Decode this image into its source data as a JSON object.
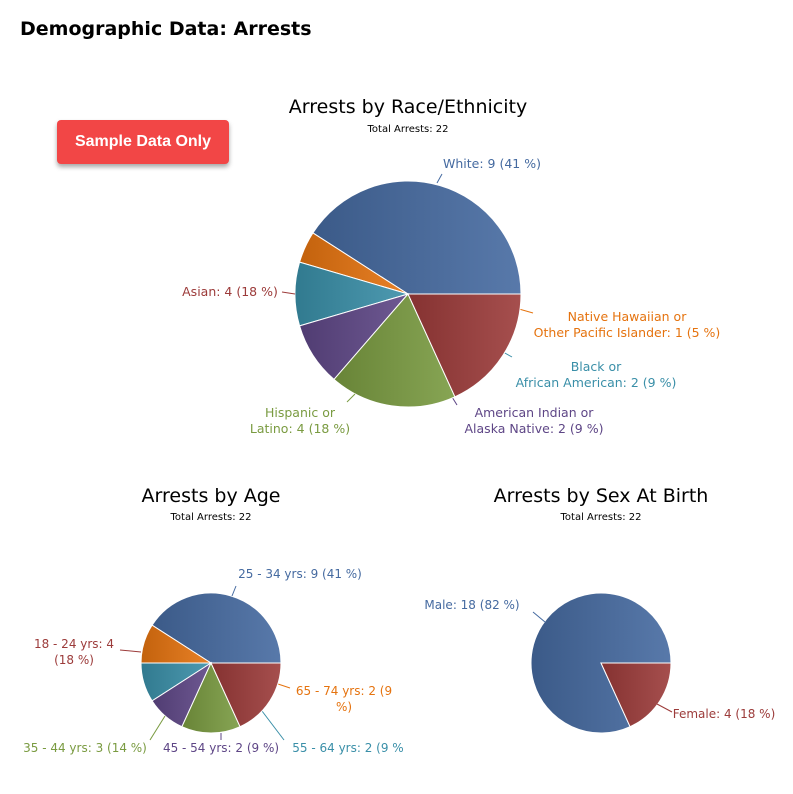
{
  "page": {
    "title": "Demographic Data: Arrests",
    "sample_button": "Sample Data Only"
  },
  "colors": {
    "blue": "#456aa0",
    "red": "#9c3b3a",
    "green": "#7a9b41",
    "purple": "#5e4686",
    "teal": "#3a8fa8",
    "orange": "#e5730f",
    "button": "#f24646"
  },
  "chart_data": [
    {
      "type": "pie",
      "title": "Arrests by Race/Ethnicity",
      "subtitle": "Total Arrests: 22",
      "slices": [
        {
          "label": [
            "White: 9 (41 %)"
          ],
          "value": 9,
          "color": "#456aa0"
        },
        {
          "label": [
            "Native Hawaiian or",
            "Other Pacific Islander: 1 (5 %)"
          ],
          "value": 1,
          "color": "#e5730f"
        },
        {
          "label": [
            "Black or",
            "African American: 2 (9 %)"
          ],
          "value": 2,
          "color": "#3a8fa8"
        },
        {
          "label": [
            "American Indian or",
            "Alaska Native: 2 (9 %)"
          ],
          "value": 2,
          "color": "#5e4686"
        },
        {
          "label": [
            "Hispanic or",
            "Latino: 4 (18 %)"
          ],
          "value": 4,
          "color": "#7a9b41"
        },
        {
          "label": [
            "Asian: 4 (18 %)"
          ],
          "value": 4,
          "color": "#9c3b3a"
        }
      ]
    },
    {
      "type": "pie",
      "title": "Arrests by Age",
      "subtitle": "Total Arrests: 22",
      "slices": [
        {
          "label": [
            "25 - 34 yrs: 9 (41 %)"
          ],
          "value": 9,
          "color": "#456aa0"
        },
        {
          "label": [
            "65 - 74 yrs: 2 (9",
            "%)"
          ],
          "value": 2,
          "color": "#e5730f"
        },
        {
          "label": [
            "55 - 64 yrs: 2 (9 %"
          ],
          "value": 2,
          "color": "#3a8fa8"
        },
        {
          "label": [
            "45 - 54 yrs: 2 (9 %)"
          ],
          "value": 2,
          "color": "#5e4686"
        },
        {
          "label": [
            "35 - 44 yrs: 3 (14 %)"
          ],
          "value": 3,
          "color": "#7a9b41"
        },
        {
          "label": [
            "18 - 24 yrs: 4",
            "(18 %)"
          ],
          "value": 4,
          "color": "#9c3b3a"
        }
      ]
    },
    {
      "type": "pie",
      "title": "Arrests by Sex At Birth",
      "subtitle": "Total Arrests: 22",
      "slices": [
        {
          "label": [
            "Male: 18 (82 %)"
          ],
          "value": 18,
          "color": "#456aa0"
        },
        {
          "label": [
            "Female: 4 (18 %)"
          ],
          "value": 4,
          "color": "#9c3b3a"
        }
      ]
    }
  ]
}
